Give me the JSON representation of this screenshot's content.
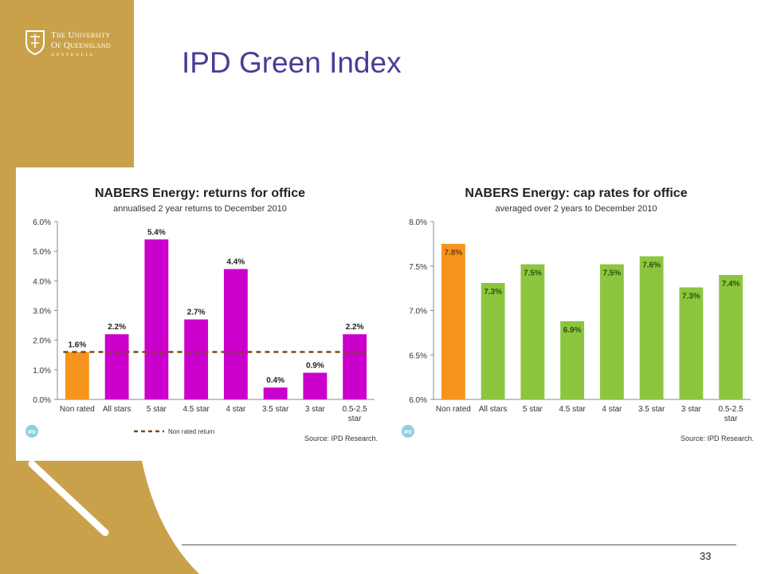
{
  "slide": {
    "title": "IPD Green Index",
    "page_number": "33",
    "colors": {
      "gold": "#c9a14a",
      "title": "#4b3c95"
    }
  },
  "logo": {
    "line1": "The University",
    "line2": "Of Queensland",
    "line3": "AUSTRALIA",
    "icon": "crest-icon"
  },
  "chart_data": [
    {
      "type": "bar",
      "title": "NABERS Energy: returns for office",
      "subtitle": "annualised 2 year returns to December 2010",
      "categories": [
        "Non rated",
        "All stars",
        "5 star",
        "4.5 star",
        "4 star",
        "3.5 star",
        "3 star",
        "0.5-2.5 star"
      ],
      "values": [
        1.6,
        2.2,
        5.4,
        2.7,
        4.4,
        0.4,
        0.9,
        2.2
      ],
      "data_labels": [
        "1.6%",
        "2.2%",
        "5.4%",
        "2.7%",
        "4.4%",
        "0.4%",
        "0.9%",
        "2.2%"
      ],
      "yticks": [
        "0.0%",
        "1.0%",
        "2.0%",
        "3.0%",
        "4.0%",
        "5.0%",
        "6.0%"
      ],
      "ylim": [
        0,
        6
      ],
      "bar_colors": [
        "#f7941d",
        "#cc00cc",
        "#cc00cc",
        "#cc00cc",
        "#cc00cc",
        "#cc00cc",
        "#cc00cc",
        "#cc00cc"
      ],
      "reference_line": {
        "value": 1.6,
        "label": "Non rated return",
        "color": "#7a4a1a"
      },
      "source": "Source: IPD Research.",
      "badge": "IPD",
      "grid": false
    },
    {
      "type": "bar",
      "title": "NABERS Energy: cap rates for office",
      "subtitle": "averaged over 2 years to December 2010",
      "categories": [
        "Non rated",
        "All stars",
        "5 star",
        "4.5 star",
        "4 star",
        "3.5 star",
        "3 star",
        "0.5-2.5 star"
      ],
      "values": [
        7.75,
        7.31,
        7.52,
        6.88,
        7.52,
        7.61,
        7.26,
        7.4
      ],
      "data_labels": [
        "7.8%",
        "7.3%",
        "7.5%",
        "6.9%",
        "7.5%",
        "7.6%",
        "7.3%",
        "7.4%"
      ],
      "yticks": [
        "6.0%",
        "6.5%",
        "7.0%",
        "7.5%",
        "8.0%"
      ],
      "ylim": [
        6,
        8
      ],
      "bar_colors": [
        "#f7941d",
        "#8cc63f",
        "#8cc63f",
        "#8cc63f",
        "#8cc63f",
        "#8cc63f",
        "#8cc63f",
        "#8cc63f"
      ],
      "source": "Source: IPD Research.",
      "badge": "IPD",
      "grid": false
    }
  ]
}
